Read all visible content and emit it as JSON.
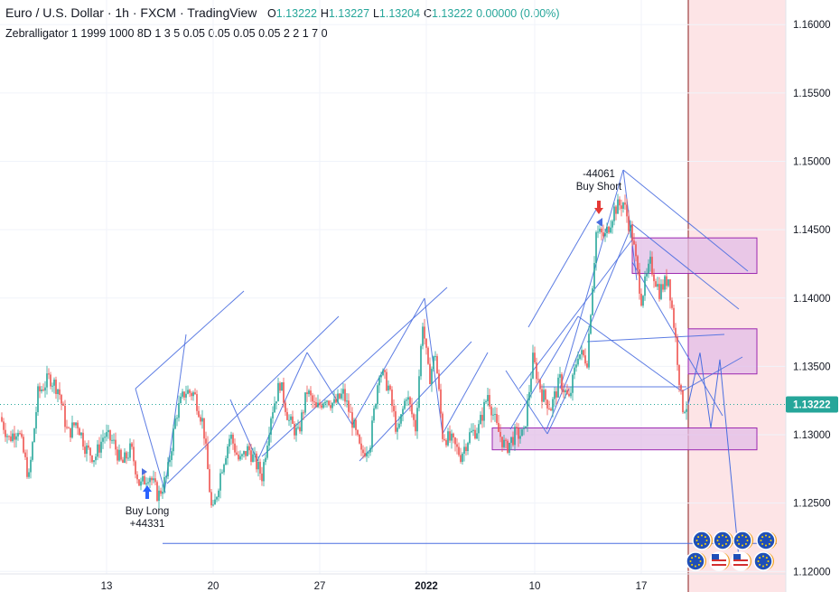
{
  "header": {
    "symbol": "Euro / U.S. Dollar",
    "sep": "·",
    "timeframe": "1h",
    "source": "FXCM",
    "platform": "TradingView",
    "o_label": "O",
    "o_value": "1.13222",
    "h_label": "H",
    "h_value": "1.13227",
    "l_label": "L",
    "l_value": "1.13204",
    "c_label": "C",
    "c_value": "1.13222",
    "change": "0.00000 (0.00%)",
    "indicator": "Zebralligator 1 1999 1000 8D 1 3 5 0.05 0.05 0.05 0.05 2 2 1 7 0"
  },
  "colors": {
    "up": "#26a69a",
    "down": "#ef5350",
    "channel": "#4a6ee0",
    "zone_fill": "#e1bee7",
    "zone_stroke": "#9c27b0",
    "future_bg": "#fde4e6",
    "now_line": "#8b1a1a",
    "price_tag": "#26a69a"
  },
  "chart_data": {
    "type": "candlestick",
    "title": "",
    "ylim": [
      1.1185,
      1.1618
    ],
    "y_ticks": [
      "1.16000",
      "1.15500",
      "1.15000",
      "1.14500",
      "1.14000",
      "1.13500",
      "1.13000",
      "1.12500",
      "1.12000"
    ],
    "x_ticks": [
      "13",
      "20",
      "27",
      "2022",
      "10",
      "17"
    ],
    "current_price": "1.13222",
    "path_points": [
      [
        0,
        1.1313
      ],
      [
        10,
        1.1297
      ],
      [
        20,
        1.1305
      ],
      [
        32,
        1.1268
      ],
      [
        42,
        1.133
      ],
      [
        55,
        1.1342
      ],
      [
        65,
        1.1333
      ],
      [
        75,
        1.13
      ],
      [
        85,
        1.131
      ],
      [
        95,
        1.129
      ],
      [
        105,
        1.1283
      ],
      [
        115,
        1.13
      ],
      [
        125,
        1.1295
      ],
      [
        135,
        1.1278
      ],
      [
        145,
        1.129
      ],
      [
        155,
        1.1262
      ],
      [
        165,
        1.1272
      ],
      [
        175,
        1.1255
      ],
      [
        185,
        1.127
      ],
      [
        195,
        1.1315
      ],
      [
        205,
        1.1332
      ],
      [
        215,
        1.133
      ],
      [
        225,
        1.1308
      ],
      [
        235,
        1.124
      ],
      [
        245,
        1.1275
      ],
      [
        255,
        1.13
      ],
      [
        265,
        1.128
      ],
      [
        275,
        1.129
      ],
      [
        290,
        1.127
      ],
      [
        300,
        1.1315
      ],
      [
        310,
        1.1338
      ],
      [
        320,
        1.131
      ],
      [
        330,
        1.13
      ],
      [
        340,
        1.1332
      ],
      [
        350,
        1.1318
      ],
      [
        360,
        1.1328
      ],
      [
        370,
        1.1322
      ],
      [
        380,
        1.133
      ],
      [
        390,
        1.131
      ],
      [
        400,
        1.1285
      ],
      [
        410,
        1.1295
      ],
      [
        420,
        1.1348
      ],
      [
        430,
        1.1335
      ],
      [
        440,
        1.13
      ],
      [
        450,
        1.133
      ],
      [
        460,
        1.1305
      ],
      [
        468,
        1.1383
      ],
      [
        475,
        1.134
      ],
      [
        482,
        1.136
      ],
      [
        490,
        1.13
      ],
      [
        500,
        1.1295
      ],
      [
        510,
        1.1285
      ],
      [
        520,
        1.13
      ],
      [
        530,
        1.1305
      ],
      [
        540,
        1.133
      ],
      [
        550,
        1.1305
      ],
      [
        560,
        1.129
      ],
      [
        570,
        1.13
      ],
      [
        580,
        1.13
      ],
      [
        590,
        1.1355
      ],
      [
        600,
        1.133
      ],
      [
        610,
        1.132
      ],
      [
        620,
        1.134
      ],
      [
        630,
        1.1325
      ],
      [
        640,
        1.136
      ],
      [
        650,
        1.1355
      ],
      [
        660,
        1.1448
      ],
      [
        670,
        1.1445
      ],
      [
        680,
        1.1465
      ],
      [
        690,
        1.147
      ],
      [
        700,
        1.1445
      ],
      [
        710,
        1.14
      ],
      [
        720,
        1.1425
      ],
      [
        730,
        1.1405
      ],
      [
        740,
        1.1415
      ],
      [
        748,
        1.137
      ],
      [
        755,
        1.132
      ],
      [
        762,
        1.1322
      ]
    ],
    "annotations": [
      {
        "label": "Buy Long",
        "value": "+44331",
        "signal": "buy"
      },
      {
        "label": "Buy Short",
        "value": "-44061",
        "signal": "sell"
      }
    ],
    "zones": [
      {
        "top": 1.1444,
        "bottom": 1.1418
      },
      {
        "top": 1.13775,
        "bottom": 1.13445
      },
      {
        "top": 1.1305,
        "bottom": 1.1289
      }
    ],
    "levels": [
      {
        "value": 1.12205,
        "name": "target-line"
      }
    ],
    "projection": [
      1.13222,
      1.136,
      1.1305,
      1.1355,
      1.121
    ]
  }
}
